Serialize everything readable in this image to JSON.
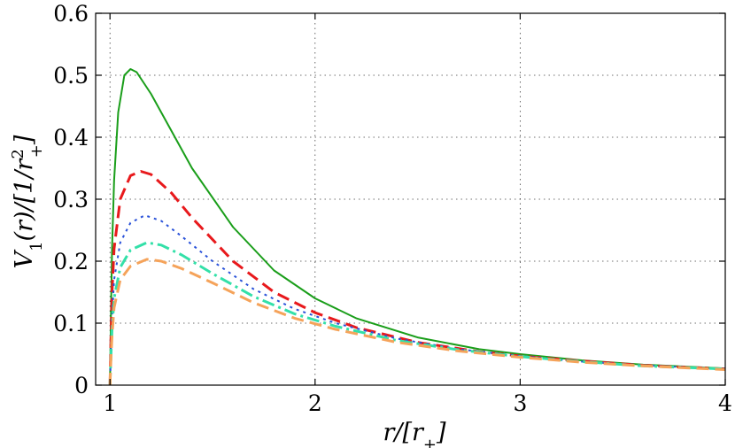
{
  "chart_data": {
    "type": "line",
    "xlabel": "r/[r+]",
    "ylabel": "V1(r)/[1/r+²]",
    "xlim": [
      0.93,
      4.0
    ],
    "ylim": [
      0,
      0.6
    ],
    "xticks": [
      1,
      2,
      3,
      4
    ],
    "xtick_labels": [
      "1",
      "2",
      "3",
      "4"
    ],
    "yticks": [
      0,
      0.1,
      0.2,
      0.3,
      0.4,
      0.5,
      0.6
    ],
    "ytick_labels": [
      "0",
      "0.1",
      "0.2",
      "0.3",
      "0.4",
      "0.5",
      "0.6"
    ],
    "grid": true,
    "series": [
      {
        "color": "#1a9e1a",
        "style": "solid",
        "width": 2,
        "points": [
          [
            1.0,
            0.0
          ],
          [
            1.005,
            0.12
          ],
          [
            1.01,
            0.22
          ],
          [
            1.02,
            0.33
          ],
          [
            1.04,
            0.44
          ],
          [
            1.07,
            0.5
          ],
          [
            1.1,
            0.51
          ],
          [
            1.13,
            0.505
          ],
          [
            1.2,
            0.47
          ],
          [
            1.3,
            0.41
          ],
          [
            1.4,
            0.35
          ],
          [
            1.6,
            0.255
          ],
          [
            1.8,
            0.185
          ],
          [
            2.0,
            0.14
          ],
          [
            2.2,
            0.108
          ],
          [
            2.5,
            0.077
          ],
          [
            2.8,
            0.058
          ],
          [
            3.0,
            0.05
          ],
          [
            3.3,
            0.04
          ],
          [
            3.6,
            0.033
          ],
          [
            4.0,
            0.027
          ]
        ]
      },
      {
        "color": "#e8191c",
        "style": "dashed",
        "width": 3,
        "points": [
          [
            1.0,
            0.0
          ],
          [
            1.005,
            0.08
          ],
          [
            1.01,
            0.15
          ],
          [
            1.02,
            0.22
          ],
          [
            1.05,
            0.3
          ],
          [
            1.1,
            0.338
          ],
          [
            1.15,
            0.345
          ],
          [
            1.2,
            0.34
          ],
          [
            1.3,
            0.31
          ],
          [
            1.4,
            0.27
          ],
          [
            1.6,
            0.2
          ],
          [
            1.8,
            0.15
          ],
          [
            2.0,
            0.117
          ],
          [
            2.2,
            0.093
          ],
          [
            2.5,
            0.069
          ],
          [
            2.8,
            0.054
          ],
          [
            3.0,
            0.047
          ],
          [
            3.3,
            0.039
          ],
          [
            3.6,
            0.032
          ],
          [
            4.0,
            0.026
          ]
        ]
      },
      {
        "color": "#2a52d9",
        "style": "dotted",
        "width": 2,
        "points": [
          [
            1.0,
            0.0
          ],
          [
            1.005,
            0.06
          ],
          [
            1.01,
            0.11
          ],
          [
            1.02,
            0.17
          ],
          [
            1.05,
            0.23
          ],
          [
            1.1,
            0.262
          ],
          [
            1.17,
            0.274
          ],
          [
            1.25,
            0.265
          ],
          [
            1.35,
            0.24
          ],
          [
            1.5,
            0.2
          ],
          [
            1.7,
            0.155
          ],
          [
            1.9,
            0.123
          ],
          [
            2.1,
            0.1
          ],
          [
            2.4,
            0.075
          ],
          [
            2.7,
            0.058
          ],
          [
            3.0,
            0.047
          ],
          [
            3.3,
            0.038
          ],
          [
            3.6,
            0.032
          ],
          [
            4.0,
            0.026
          ]
        ]
      },
      {
        "color": "#33e0a8",
        "style": "dashdot",
        "width": 3,
        "points": [
          [
            1.0,
            0.0
          ],
          [
            1.005,
            0.05
          ],
          [
            1.01,
            0.09
          ],
          [
            1.02,
            0.14
          ],
          [
            1.05,
            0.19
          ],
          [
            1.1,
            0.218
          ],
          [
            1.18,
            0.23
          ],
          [
            1.25,
            0.226
          ],
          [
            1.35,
            0.21
          ],
          [
            1.5,
            0.18
          ],
          [
            1.7,
            0.143
          ],
          [
            1.9,
            0.115
          ],
          [
            2.1,
            0.095
          ],
          [
            2.4,
            0.072
          ],
          [
            2.7,
            0.057
          ],
          [
            3.0,
            0.046
          ],
          [
            3.3,
            0.038
          ],
          [
            3.6,
            0.031
          ],
          [
            4.0,
            0.026
          ]
        ]
      },
      {
        "color": "#f5a35a",
        "style": "dashed",
        "width": 3,
        "points": [
          [
            1.0,
            0.0
          ],
          [
            1.005,
            0.045
          ],
          [
            1.01,
            0.08
          ],
          [
            1.02,
            0.125
          ],
          [
            1.05,
            0.17
          ],
          [
            1.1,
            0.192
          ],
          [
            1.18,
            0.203
          ],
          [
            1.25,
            0.2
          ],
          [
            1.35,
            0.188
          ],
          [
            1.5,
            0.165
          ],
          [
            1.7,
            0.133
          ],
          [
            1.9,
            0.108
          ],
          [
            2.1,
            0.09
          ],
          [
            2.4,
            0.069
          ],
          [
            2.7,
            0.055
          ],
          [
            3.0,
            0.045
          ],
          [
            3.3,
            0.037
          ],
          [
            3.6,
            0.031
          ],
          [
            4.0,
            0.025
          ]
        ]
      }
    ]
  }
}
